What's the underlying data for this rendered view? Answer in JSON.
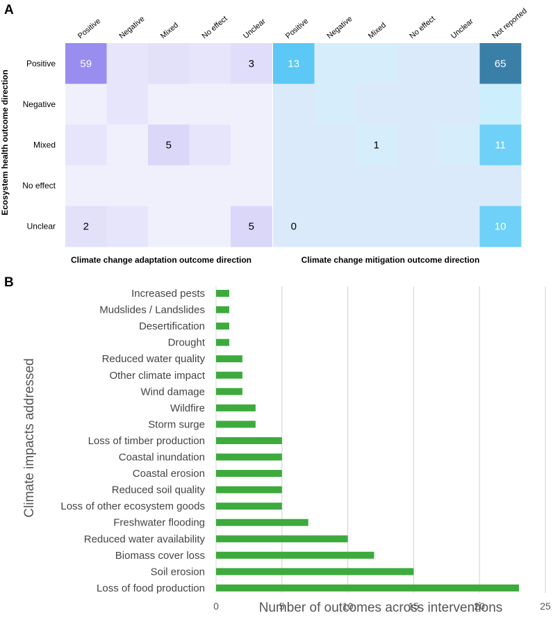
{
  "chart_data": [
    {
      "type": "heatmap",
      "panel_label": "A",
      "y_axis_title": "Ecosystem health outcome direction",
      "rows": [
        "Positive",
        "Negative",
        "Mixed",
        "No effect",
        "Unclear"
      ],
      "adaptation": {
        "title": "Climate change adaptation outcome direction",
        "columns": [
          "Positive",
          "Negative",
          "Mixed",
          "No effect",
          "Unclear"
        ],
        "values": [
          [
            59,
            1,
            2,
            1,
            3
          ],
          [
            0,
            1,
            0,
            0,
            0
          ],
          [
            1,
            0,
            5,
            1,
            0
          ],
          [
            0,
            0,
            0,
            0,
            0
          ],
          [
            2,
            1,
            0,
            0,
            5
          ]
        ],
        "labels": [
          [
            "59",
            "",
            "",
            "",
            "3"
          ],
          [
            "",
            "",
            "",
            "",
            ""
          ],
          [
            "",
            "",
            "5",
            "",
            ""
          ],
          [
            "",
            "",
            "",
            "",
            ""
          ],
          [
            "2",
            "",
            "",
            "",
            "5"
          ]
        ]
      },
      "mitigation": {
        "title": "Climate change mitigation outcome direction",
        "columns": [
          "Positive",
          "Negative",
          "Mixed",
          "No effect",
          "Unclear",
          "Not reported"
        ],
        "values": [
          [
            13,
            1,
            1,
            0,
            0,
            65
          ],
          [
            0,
            1,
            0,
            0,
            0,
            3
          ],
          [
            0,
            0,
            1,
            0,
            1,
            11
          ],
          [
            0,
            0,
            0,
            0,
            0,
            0
          ],
          [
            0,
            0,
            0,
            0,
            0,
            10
          ]
        ],
        "labels": [
          [
            "13",
            "",
            "",
            "",
            "",
            "65"
          ],
          [
            "",
            "",
            "",
            "",
            "",
            ""
          ],
          [
            "",
            "",
            "1",
            "",
            "",
            "11"
          ],
          [
            "",
            "",
            "",
            "",
            "",
            ""
          ],
          [
            "0",
            "",
            "",
            "",
            "",
            "10"
          ]
        ]
      }
    },
    {
      "type": "bar",
      "orientation": "horizontal",
      "panel_label": "B",
      "categories": [
        "Increased pests",
        "Mudslides / Landslides",
        "Desertification",
        "Drought",
        "Reduced water quality",
        "Other climate impact",
        "Wind damage",
        "Wildfire",
        "Storm surge",
        "Loss of timber production",
        "Coastal inundation",
        "Coastal erosion",
        "Reduced soil quality",
        "Loss of other ecosystem goods",
        "Freshwater flooding",
        "Reduced water availability",
        "Biomass cover loss",
        "Soil erosion",
        "Loss of food production"
      ],
      "values": [
        1,
        1,
        1,
        1,
        2,
        2,
        2,
        3,
        3,
        5,
        5,
        5,
        5,
        5,
        7,
        10,
        12,
        15,
        23
      ],
      "xlabel": "Number of outcomes across interventions",
      "ylabel": "Climate impacts addressed",
      "xlim": [
        0,
        25
      ],
      "xticks": [
        0,
        5,
        10,
        15,
        20,
        25
      ],
      "grid": "vertical",
      "bar_color": "#3cab3c"
    }
  ]
}
